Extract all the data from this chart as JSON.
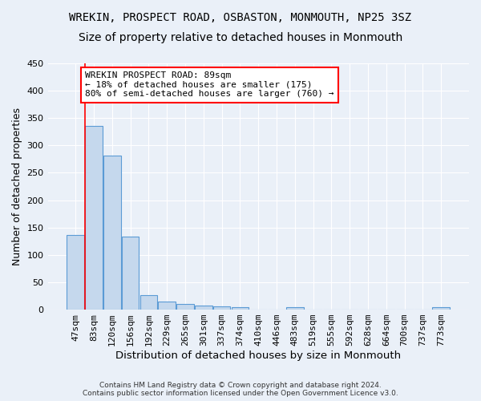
{
  "title1": "WREKIN, PROSPECT ROAD, OSBASTON, MONMOUTH, NP25 3SZ",
  "title2": "Size of property relative to detached houses in Monmouth",
  "xlabel": "Distribution of detached houses by size in Monmouth",
  "ylabel": "Number of detached properties",
  "bar_labels": [
    "47sqm",
    "83sqm",
    "120sqm",
    "156sqm",
    "192sqm",
    "229sqm",
    "265sqm",
    "301sqm",
    "337sqm",
    "374sqm",
    "410sqm",
    "446sqm",
    "483sqm",
    "519sqm",
    "555sqm",
    "592sqm",
    "628sqm",
    "664sqm",
    "700sqm",
    "737sqm",
    "773sqm"
  ],
  "bar_values": [
    136,
    336,
    281,
    134,
    27,
    15,
    11,
    7,
    6,
    5,
    0,
    0,
    5,
    0,
    0,
    0,
    0,
    0,
    0,
    0,
    5
  ],
  "bar_color": "#c5d8ed",
  "bar_edge_color": "#5b9bd5",
  "vline_color": "red",
  "annotation_text": "WREKIN PROSPECT ROAD: 89sqm\n← 18% of detached houses are smaller (175)\n80% of semi-detached houses are larger (760) →",
  "annotation_box_color": "white",
  "annotation_box_edge": "red",
  "ylim": [
    0,
    450
  ],
  "yticks": [
    0,
    50,
    100,
    150,
    200,
    250,
    300,
    350,
    400,
    450
  ],
  "background_color": "#eaf0f8",
  "plot_bg_color": "#eaf0f8",
  "footer1": "Contains HM Land Registry data © Crown copyright and database right 2024.",
  "footer2": "Contains public sector information licensed under the Open Government Licence v3.0.",
  "title1_fontsize": 10,
  "title2_fontsize": 10,
  "tick_fontsize": 8,
  "ylabel_fontsize": 9,
  "xlabel_fontsize": 9.5
}
